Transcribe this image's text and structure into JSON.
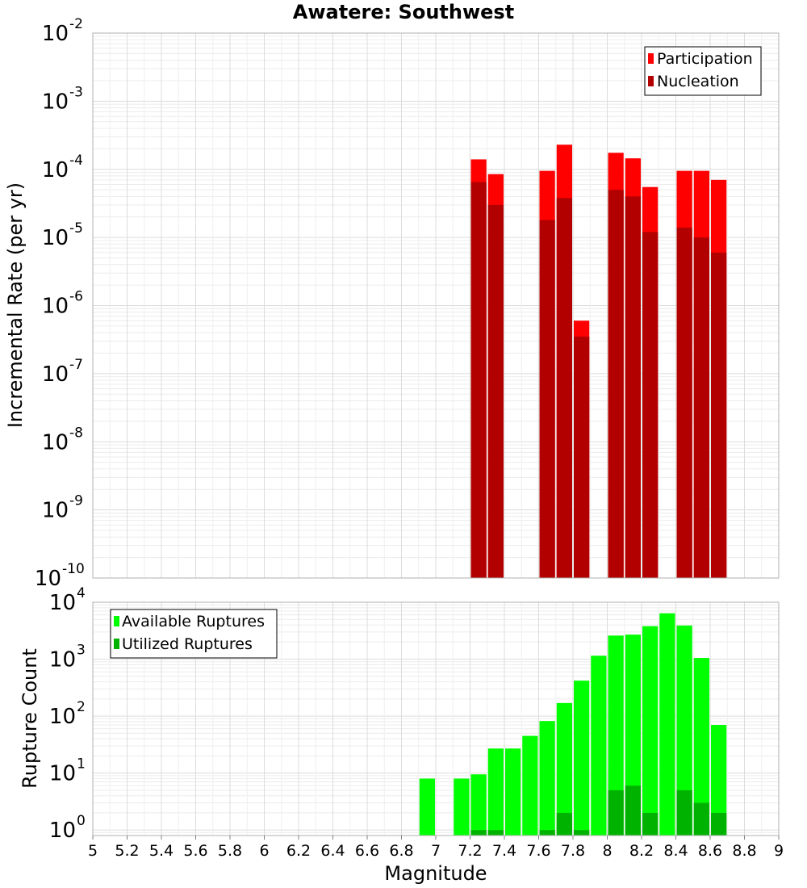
{
  "chart_data": {
    "title": "Awatere: Southwest",
    "xlabel": "Magnitude",
    "x_ticks": [
      "5",
      "5.2",
      "5.4",
      "5.6",
      "5.8",
      "6",
      "6.2",
      "6.4",
      "6.6",
      "6.8",
      "7",
      "7.2",
      "7.4",
      "7.6",
      "7.8",
      "8",
      "8.2",
      "8.4",
      "8.6",
      "8.8",
      "9"
    ],
    "xlim": [
      5,
      9
    ],
    "bin_width": 0.1,
    "grid": true,
    "panels": [
      {
        "type": "bar",
        "y_scale": "log",
        "ylabel": "Incremental Rate (per yr)",
        "ylim_exponents": [
          -10,
          -2
        ],
        "y_tick_exponents": [
          "-10",
          "-9",
          "-8",
          "-7",
          "-6",
          "-5",
          "-4",
          "-3",
          "-2"
        ],
        "legend_position": "top-right",
        "series": [
          {
            "name": "Participation",
            "color": "#ff0000",
            "x": [
              7.25,
              7.35,
              7.65,
              7.75,
              7.85,
              8.05,
              8.15,
              8.25,
              8.45,
              8.55,
              8.65
            ],
            "values": [
              0.00014,
              8.5e-05,
              9.5e-05,
              0.00023,
              6e-07,
              0.000175,
              0.000145,
              5.5e-05,
              9.5e-05,
              9.5e-05,
              7e-05
            ]
          },
          {
            "name": "Nucleation",
            "color": "#b20000",
            "x": [
              7.25,
              7.35,
              7.65,
              7.75,
              7.85,
              8.05,
              8.15,
              8.25,
              8.45,
              8.55,
              8.65
            ],
            "values": [
              6.5e-05,
              3e-05,
              1.8e-05,
              3.8e-05,
              3.5e-07,
              5e-05,
              4e-05,
              1.2e-05,
              1.4e-05,
              1e-05,
              6e-06
            ]
          }
        ]
      },
      {
        "type": "bar",
        "y_scale": "log",
        "ylabel": "Rupture Count",
        "ylim": [
          0.8,
          10000
        ],
        "y_tick_exponents": [
          "0",
          "1",
          "2",
          "3",
          "4"
        ],
        "legend_position": "top-left",
        "series": [
          {
            "name": "Available Ruptures",
            "color": "#00ff00",
            "x": [
              6.95,
              7.15,
              7.25,
              7.35,
              7.45,
              7.55,
              7.65,
              7.75,
              7.85,
              7.95,
              8.05,
              8.15,
              8.25,
              8.35,
              8.45,
              8.55,
              8.65
            ],
            "values": [
              8,
              8,
              9.5,
              27,
              27,
              45,
              82,
              170,
              420,
              1150,
              2600,
              2700,
              3800,
              6400,
              3900,
              1050,
              70
            ]
          },
          {
            "name": "Utilized Ruptures",
            "color": "#00b200",
            "x": [
              7.25,
              7.35,
              7.65,
              7.75,
              7.85,
              8.05,
              8.15,
              8.25,
              8.45,
              8.55,
              8.65
            ],
            "values": [
              1,
              1,
              1,
              2,
              1,
              5,
              6,
              2,
              5,
              3,
              2
            ]
          }
        ]
      }
    ]
  }
}
